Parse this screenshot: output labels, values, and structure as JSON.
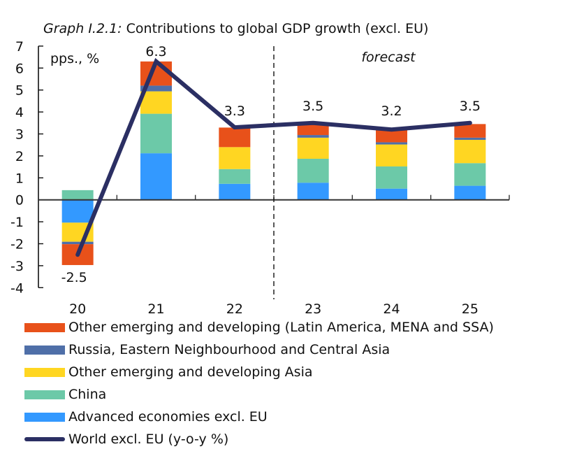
{
  "chart_data": {
    "type": "bar",
    "stacked": true,
    "title_lead": "Graph I.2.1:",
    "title": "Contributions to global GDP growth (excl. EU)",
    "ylabel": "pps., %",
    "xlabel": "",
    "ylim": [
      -4,
      7
    ],
    "yticks": [
      7,
      6,
      5,
      4,
      3,
      2,
      1,
      0,
      -1,
      -2,
      -3,
      -4
    ],
    "categories": [
      "20",
      "21",
      "22",
      "23",
      "24",
      "25"
    ],
    "forecast_label": "forecast",
    "forecast_starts_after": "22",
    "grid": false,
    "legend_position": "bottom",
    "series": [
      {
        "name": "Advanced economies excl. EU",
        "color": "#3399FF",
        "values": [
          -1.04,
          2.12,
          0.73,
          0.78,
          0.51,
          0.64
        ]
      },
      {
        "name": "China",
        "color": "#6CC9A8",
        "values": [
          0.44,
          1.8,
          0.67,
          1.09,
          1.01,
          1.03
        ]
      },
      {
        "name": "Other emerging and developing Asia",
        "color": "#FFD622",
        "values": [
          -0.87,
          1.02,
          1.0,
          0.96,
          1.0,
          1.06
        ]
      },
      {
        "name": "Russia, Eastern Neighbourhood and Central Asia",
        "color": "#4F6FA8",
        "values": [
          -0.11,
          0.26,
          0.0,
          0.12,
          0.1,
          0.1
        ]
      },
      {
        "name": "Other emerging and developing (Latin America, MENA and SSA)",
        "color": "#E8511A",
        "values": [
          -0.95,
          1.1,
          0.89,
          0.47,
          0.56,
          0.62
        ]
      }
    ],
    "line": {
      "name": "World excl. EU (y-o-y %)",
      "color": "#2B2F63",
      "values": [
        -2.5,
        6.3,
        3.3,
        3.5,
        3.2,
        3.5
      ],
      "labels": [
        "-2.5",
        "6.3",
        "3.3",
        "3.5",
        "3.2",
        "3.5"
      ]
    },
    "legend_order": [
      "Other emerging and developing (Latin America, MENA and SSA)",
      "Russia, Eastern Neighbourhood and Central Asia",
      "Other emerging and developing Asia",
      "China",
      "Advanced economies excl. EU",
      "World excl. EU (y-o-y %)"
    ]
  }
}
